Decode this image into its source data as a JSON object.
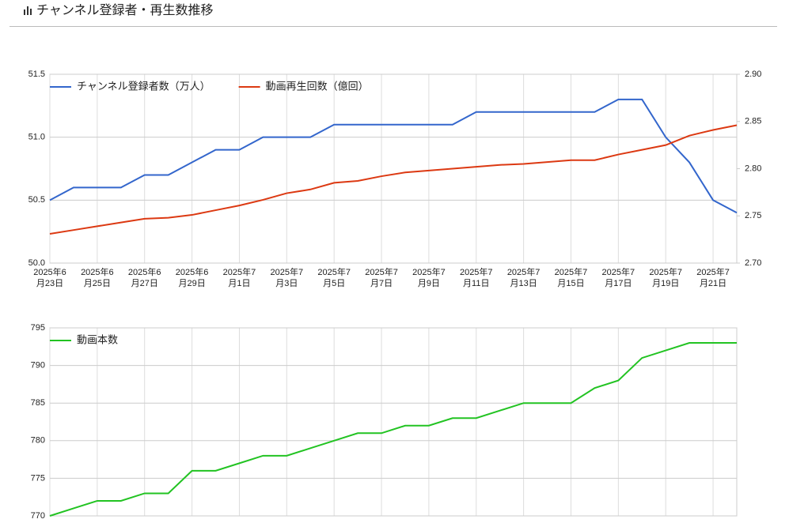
{
  "header": {
    "title": "チャンネル登録者・再生数推移"
  },
  "chart_data": [
    {
      "type": "line",
      "categories": [
        [
          "2025年6",
          "月23日"
        ],
        null,
        [
          "2025年6",
          "月25日"
        ],
        null,
        [
          "2025年6",
          "月27日"
        ],
        null,
        [
          "2025年6",
          "月29日"
        ],
        null,
        [
          "2025年7",
          "月1日"
        ],
        null,
        [
          "2025年7",
          "月3日"
        ],
        null,
        [
          "2025年7",
          "月5日"
        ],
        null,
        [
          "2025年7",
          "月7日"
        ],
        null,
        [
          "2025年7",
          "月9日"
        ],
        null,
        [
          "2025年7",
          "月11日"
        ],
        null,
        [
          "2025年7",
          "月13日"
        ],
        null,
        [
          "2025年7",
          "月15日"
        ],
        null,
        [
          "2025年7",
          "月17日"
        ],
        null,
        [
          "2025年7",
          "月19日"
        ],
        null,
        [
          "2025年7",
          "月21日"
        ],
        null
      ],
      "series": [
        {
          "name": "チャンネル登録者数（万人）",
          "color": "#3366cc",
          "values": [
            50.5,
            50.6,
            50.6,
            50.6,
            50.7,
            50.7,
            50.8,
            50.9,
            50.9,
            51.0,
            51.0,
            51.0,
            51.1,
            51.1,
            51.1,
            51.1,
            51.1,
            51.1,
            51.2,
            51.2,
            51.2,
            51.2,
            51.2,
            51.2,
            51.3,
            51.3,
            51.0,
            50.8,
            50.5,
            50.4
          ]
        },
        {
          "name": "動画再生回数（億回）",
          "color": "#dc3912",
          "axis": "y2",
          "values": [
            2.731,
            2.735,
            2.739,
            2.743,
            2.747,
            2.748,
            2.751,
            2.756,
            2.761,
            2.767,
            2.774,
            2.778,
            2.785,
            2.787,
            2.792,
            2.796,
            2.798,
            2.8,
            2.802,
            2.804,
            2.805,
            2.807,
            2.809,
            2.809,
            2.815,
            2.82,
            2.825,
            2.835,
            2.841,
            2.846
          ]
        }
      ],
      "ylim": [
        50,
        51.5
      ],
      "yticks": [
        {
          "value": 50,
          "label": "50.0"
        },
        50.5,
        {
          "value": 51,
          "label": "51.0"
        },
        51.5
      ],
      "y2lim": [
        2.7,
        2.9
      ],
      "y2ticks": [
        {
          "value": 2.7,
          "label": "2.70"
        },
        2.75,
        {
          "value": 2.8,
          "label": "2.80"
        },
        2.85,
        {
          "value": 2.9,
          "label": "2.90"
        }
      ],
      "grid": true,
      "legend": "top-left"
    },
    {
      "type": "line",
      "series": [
        {
          "name": "動画本数",
          "color": "#22c322",
          "values": [
            770,
            771,
            772,
            772,
            773,
            773,
            776,
            776,
            777,
            778,
            778,
            779,
            780,
            781,
            781,
            782,
            782,
            783,
            783,
            784,
            785,
            785,
            785,
            787,
            788,
            791,
            792,
            793,
            793,
            793
          ]
        }
      ],
      "ylim": [
        770,
        795
      ],
      "yticks": [
        770,
        775,
        780,
        785,
        790,
        795
      ],
      "grid": true,
      "legend": "top-left"
    }
  ]
}
